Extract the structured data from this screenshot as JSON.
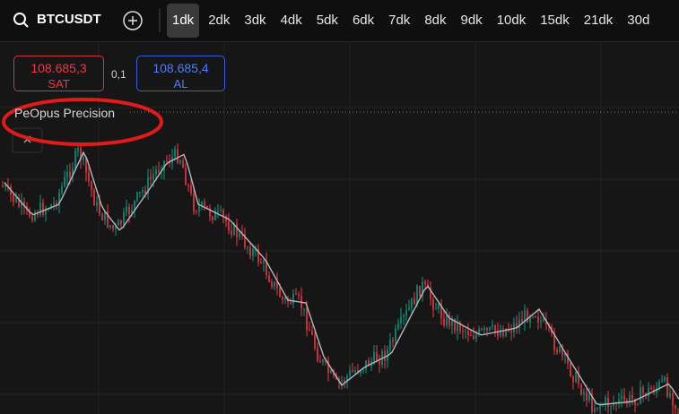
{
  "toolbar": {
    "symbol": "BTCUSDT",
    "timeframes": [
      "1dk",
      "2dk",
      "3dk",
      "4dk",
      "5dk",
      "6dk",
      "7dk",
      "8dk",
      "9dk",
      "10dk",
      "15dk",
      "21dk",
      "30d"
    ],
    "active": 0
  },
  "order_panel": {
    "sell": {
      "price": "108.685,3",
      "label": "SAT"
    },
    "spread": "0,1",
    "buy": {
      "price": "108.685,4",
      "label": "AL"
    }
  },
  "indicator": {
    "name": "PeOpus Precision"
  }
}
